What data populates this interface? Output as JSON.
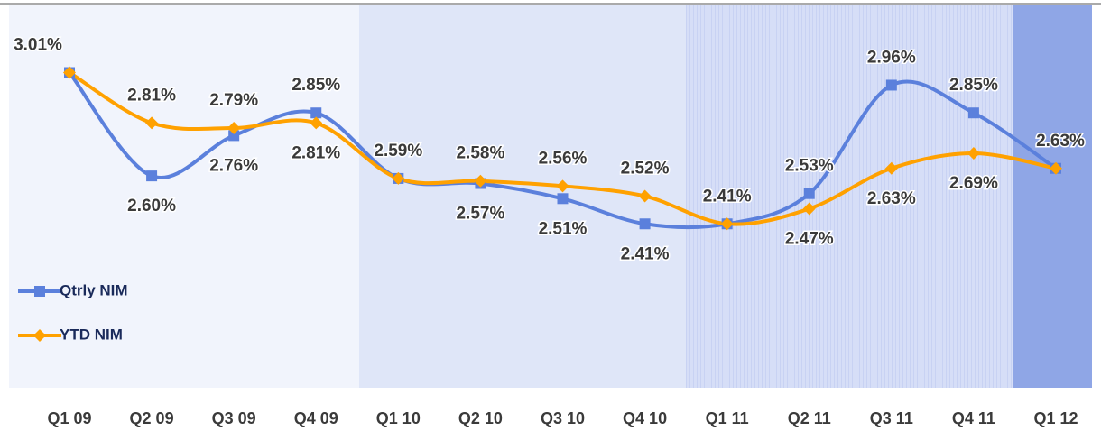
{
  "chart_data": {
    "type": "line",
    "categories": [
      "Q1 09",
      "Q2 09",
      "Q3 09",
      "Q4 09",
      "Q1 10",
      "Q2 10",
      "Q3 10",
      "Q4 10",
      "Q1 11",
      "Q2 11",
      "Q3 11",
      "Q4 11",
      "Q1 12"
    ],
    "series": [
      {
        "name": "Qtrly NIM",
        "color": "#5b80dc",
        "marker": "square",
        "values": [
          3.01,
          2.6,
          2.76,
          2.85,
          2.59,
          2.57,
          2.51,
          2.41,
          2.41,
          2.53,
          2.96,
          2.85,
          2.63
        ],
        "value_labels": [
          "3.01%",
          "2.60%",
          "2.76%",
          "2.85%",
          "2.59%",
          "2.57%",
          "2.51%",
          "2.41%",
          "2.41%",
          "2.53%",
          "2.96%",
          "2.85%",
          "2.63%"
        ]
      },
      {
        "name": "YTD NIM",
        "color": "#ffa100",
        "marker": "diamond",
        "values": [
          3.01,
          2.81,
          2.79,
          2.81,
          2.59,
          2.58,
          2.56,
          2.52,
          2.41,
          2.47,
          2.63,
          2.69,
          2.63
        ],
        "value_labels": [
          null,
          "2.81%",
          "2.79%",
          "2.81%",
          null,
          "2.58%",
          "2.56%",
          "2.52%",
          null,
          "2.47%",
          "2.63%",
          "2.69%",
          null
        ]
      }
    ],
    "ylim": [
      1.76,
      3.28
    ],
    "legend": "left"
  }
}
